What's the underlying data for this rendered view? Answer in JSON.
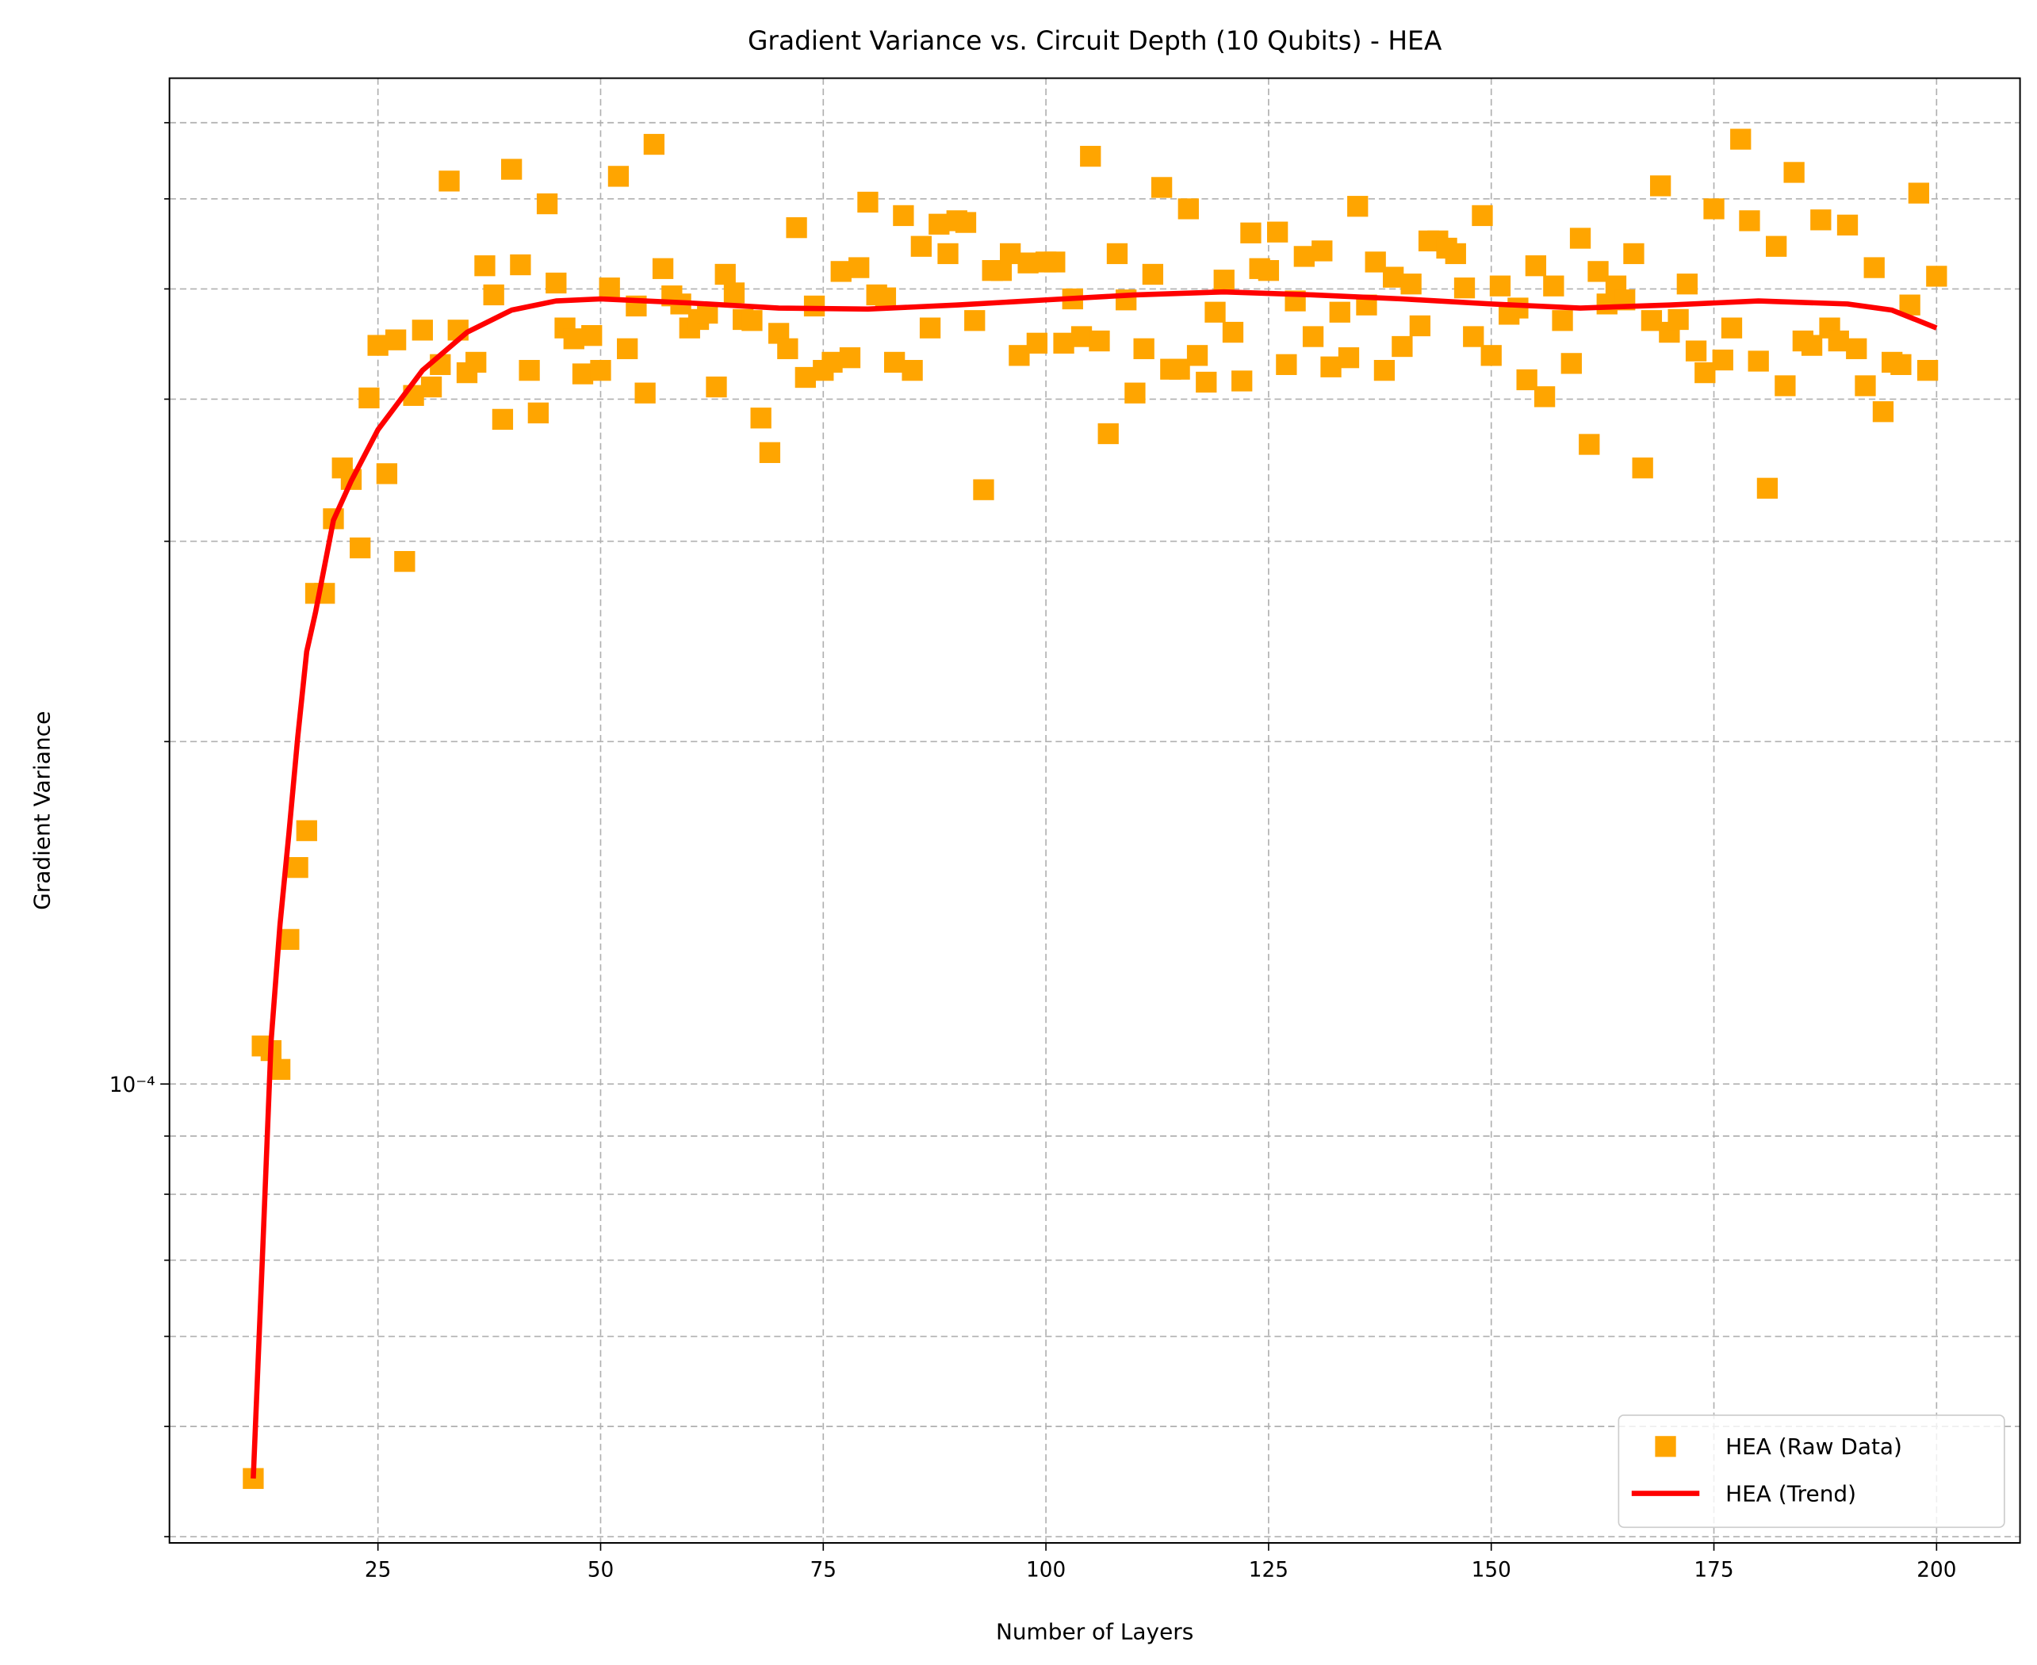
{
  "chart_data": {
    "type": "scatter",
    "title": "Gradient Variance vs. Circuit Depth (10 Qubits) - HEA",
    "x_label": "Number of Layers",
    "y_label": "Gradient Variance",
    "y_log": true,
    "grid": true,
    "legend": "lower right",
    "xlim": [
      1.59,
      209.37
    ],
    "ylim": [
      3.95e-05,
      0.000766
    ],
    "xticks": [
      25,
      50,
      75,
      100,
      125,
      150,
      175,
      200
    ],
    "yticks": [
      {
        "value": 0.0001,
        "label": "10⁻⁴"
      }
    ],
    "yminorticks": [
      4e-05,
      5e-05,
      6e-05,
      7e-05,
      8e-05,
      9e-05,
      0.0002,
      0.0003,
      0.0004,
      0.0005,
      0.0006,
      0.0007
    ],
    "series": [
      {
        "name": "HEA (Raw Data)",
        "color": "#ffa500",
        "type": "scatter",
        "x": [
          11,
          12,
          13,
          14,
          15,
          16,
          17,
          18,
          19,
          20,
          21,
          22,
          23,
          24,
          25,
          26,
          27,
          28,
          29,
          30,
          31,
          32,
          33,
          34,
          35,
          36,
          37,
          38,
          39,
          40,
          41,
          42,
          43,
          44,
          45,
          46,
          47,
          48,
          49,
          50,
          51,
          52,
          53,
          54,
          55,
          56,
          57,
          58,
          59,
          60,
          61,
          62,
          63,
          64,
          65,
          66,
          67,
          68,
          69,
          70,
          71,
          72,
          73,
          74,
          75,
          76,
          77,
          78,
          79,
          80,
          81,
          82,
          83,
          84,
          85,
          86,
          87,
          88,
          89,
          90,
          91,
          92,
          93,
          94,
          95,
          96,
          97,
          98,
          99,
          100,
          101,
          102,
          103,
          104,
          105,
          106,
          107,
          108,
          109,
          110,
          111,
          112,
          113,
          114,
          115,
          116,
          117,
          118,
          119,
          120,
          121,
          122,
          123,
          124,
          125,
          126,
          127,
          128,
          129,
          130,
          131,
          132,
          133,
          134,
          135,
          136,
          137,
          138,
          139,
          140,
          141,
          142,
          143,
          144,
          145,
          146,
          147,
          148,
          149,
          150,
          151,
          152,
          153,
          154,
          155,
          156,
          157,
          158,
          159,
          160,
          161,
          162,
          163,
          164,
          165,
          166,
          167,
          168,
          169,
          170,
          171,
          172,
          173,
          174,
          175,
          176,
          177,
          178,
          179,
          180,
          181,
          182,
          183,
          184,
          185,
          186,
          187,
          188,
          189,
          190,
          191,
          192,
          193,
          194,
          195,
          196,
          197,
          198,
          199,
          200
        ],
        "values": [
          4.5e-05,
          0.000108,
          0.000107,
          0.000103,
          0.000134,
          0.000155,
          0.000167,
          0.00027,
          0.00027,
          0.000314,
          0.000348,
          0.00034,
          0.000296,
          0.000401,
          0.000446,
          0.000344,
          0.000451,
          0.000288,
          0.000403,
          0.00046,
          0.00041,
          0.000429,
          0.000622,
          0.00046,
          0.000422,
          0.000431,
          0.000524,
          0.000494,
          0.000384,
          0.000637,
          0.000525,
          0.000424,
          0.000389,
          0.000594,
          0.000506,
          0.000462,
          0.000452,
          0.000421,
          0.000455,
          0.000424,
          0.000501,
          0.000628,
          0.000443,
          0.000483,
          0.000405,
          0.00067,
          0.000521,
          0.000493,
          0.000485,
          0.000462,
          0.00047,
          0.000476,
          0.00041,
          0.000515,
          0.000496,
          0.00047,
          0.000469,
          0.000385,
          0.000359,
          0.000457,
          0.000443,
          0.000566,
          0.000418,
          0.000483,
          0.000424,
          0.000431,
          0.000518,
          0.000435,
          0.000522,
          0.000596,
          0.000494,
          0.000491,
          0.000431,
          0.00058,
          0.000424,
          0.000545,
          0.000462,
          0.00057,
          0.000537,
          0.000574,
          0.000572,
          0.000469,
          0.000333,
          0.000519,
          0.000519,
          0.000537,
          0.000437,
          0.000527,
          0.000448,
          0.000528,
          0.000528,
          0.000448,
          0.00049,
          0.000454,
          0.000654,
          0.00045,
          0.000373,
          0.000537,
          0.000489,
          0.000405,
          0.000443,
          0.000515,
          0.000614,
          0.000425,
          0.000425,
          0.000588,
          0.000437,
          0.000414,
          0.000477,
          0.000509,
          0.000458,
          0.000415,
          0.00056,
          0.000521,
          0.000519,
          0.000561,
          0.000429,
          0.000488,
          0.000534,
          0.000454,
          0.00054,
          0.000427,
          0.000477,
          0.000435,
          0.000591,
          0.000484,
          0.000528,
          0.000424,
          0.000512,
          0.000445,
          0.000505,
          0.000464,
          0.000551,
          0.000551,
          0.000543,
          0.000537,
          0.000501,
          0.000454,
          0.00058,
          0.000437,
          0.000503,
          0.000475,
          0.000481,
          0.000416,
          0.000524,
          0.000402,
          0.000503,
          0.000469,
          0.00043,
          0.000554,
          0.000365,
          0.000518,
          0.000485,
          0.000503,
          0.000489,
          0.000537,
          0.000348,
          0.000469,
          0.000616,
          0.000458,
          0.00047,
          0.000505,
          0.000441,
          0.000422,
          0.000588,
          0.000433,
          0.000462,
          0.000677,
          0.000574,
          0.000432,
          0.000334,
          0.000545,
          0.000411,
          0.000633,
          0.00045,
          0.000446,
          0.000575,
          0.000462,
          0.00045,
          0.000569,
          0.000443,
          0.000411,
          0.000522,
          0.00039,
          0.000431,
          0.000429,
          0.000484,
          0.000607,
          0.000424,
          0.000513
        ]
      },
      {
        "name": "HEA (Trend)",
        "color": "#ff0000",
        "type": "line",
        "x": [
          11,
          12,
          13,
          14,
          15,
          16,
          17,
          18,
          20,
          22,
          25,
          30,
          35,
          40,
          45,
          50,
          60,
          70,
          80,
          90,
          100,
          110,
          120,
          130,
          140,
          150,
          160,
          170,
          180,
          190,
          195,
          200
        ],
        "values": [
          4.5e-05,
          6.95e-05,
          0.000109,
          0.000138,
          0.000166,
          0.000202,
          0.00024,
          0.00026,
          0.000313,
          0.000339,
          0.000376,
          0.000424,
          0.000458,
          0.000479,
          0.000488,
          0.00049,
          0.000486,
          0.000481,
          0.00048,
          0.000484,
          0.000489,
          0.000494,
          0.000497,
          0.000494,
          0.00049,
          0.000485,
          0.000481,
          0.000484,
          0.000488,
          0.000485,
          0.000479,
          0.000462
        ]
      }
    ]
  }
}
